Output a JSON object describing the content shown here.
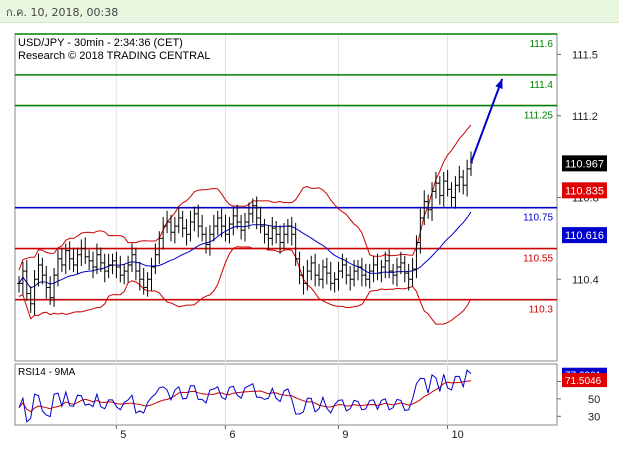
{
  "header": {
    "timestamp": "ก.ค. 10, 2018, 00:38"
  },
  "chart_data": {
    "type": "line",
    "title": "USD/JPY - 30min - 2:34:36 (CET)",
    "subtitle": "Research © 2018 TRADING CENTRAL",
    "x_tick_labels": [
      "5",
      "6",
      "9",
      "10"
    ],
    "x_tick_days": [
      5,
      6,
      9,
      10
    ],
    "y_ticks": [
      110.4,
      110.8,
      111.2,
      111.5
    ],
    "y_tick_labels": [
      "110.4",
      "110.8",
      "111.2",
      "111.5"
    ],
    "y_range": [
      110.0,
      111.6
    ],
    "resistance_levels": [
      {
        "value": 111.6,
        "label": "111.6",
        "color": "#008000"
      },
      {
        "value": 111.4,
        "label": "111.4",
        "color": "#008000"
      },
      {
        "value": 111.25,
        "label": "111.25",
        "color": "#008000"
      }
    ],
    "pivot_level": {
      "value": 110.75,
      "label": "110.75",
      "color": "#0000cc"
    },
    "support_levels": [
      {
        "value": 110.55,
        "label": "110.55",
        "color": "#cc0000"
      },
      {
        "value": 110.3,
        "label": "110.3",
        "color": "#cc0000"
      }
    ],
    "price_tags": [
      {
        "value": 110.967,
        "label": "110.967",
        "color": "#000000"
      },
      {
        "value": 110.835,
        "label": "110.835",
        "color": "#e00000"
      },
      {
        "value": 110.616,
        "label": "110.616",
        "color": "#0000cc"
      }
    ],
    "price_closes": [
      110.38,
      110.44,
      110.33,
      110.28,
      110.4,
      110.47,
      110.42,
      110.36,
      110.31,
      110.42,
      110.5,
      110.47,
      110.54,
      110.5,
      110.47,
      110.52,
      110.55,
      110.51,
      110.49,
      110.46,
      110.52,
      110.48,
      110.44,
      110.47,
      110.49,
      110.46,
      110.42,
      110.44,
      110.47,
      110.52,
      110.44,
      110.4,
      110.36,
      110.4,
      110.46,
      110.52,
      110.6,
      110.66,
      110.68,
      110.63,
      110.66,
      110.7,
      110.65,
      110.62,
      110.68,
      110.72,
      110.66,
      110.62,
      110.57,
      110.62,
      110.66,
      110.7,
      110.66,
      110.62,
      110.67,
      110.71,
      110.68,
      110.64,
      110.68,
      110.72,
      110.76,
      110.7,
      110.66,
      110.62,
      110.6,
      110.65,
      110.62,
      110.58,
      110.62,
      110.66,
      110.62,
      110.5,
      110.42,
      110.38,
      110.44,
      110.48,
      110.42,
      110.4,
      110.46,
      110.43,
      110.38,
      110.4,
      110.44,
      110.47,
      110.42,
      110.4,
      110.44,
      110.46,
      110.42,
      110.4,
      110.44,
      110.47,
      110.43,
      110.46,
      110.49,
      110.44,
      110.42,
      110.46,
      110.48,
      110.43,
      110.4,
      110.45,
      110.58,
      110.7,
      110.78,
      110.74,
      110.83,
      110.87,
      110.81,
      110.88,
      110.84,
      110.8,
      110.86,
      110.9,
      110.86,
      110.94,
      110.97
    ],
    "rsi": {
      "label": "RSI14 - 9MA",
      "y_ticks": [
        30,
        50,
        70
      ],
      "y_range": [
        20,
        90
      ],
      "rsi_value": {
        "value": 77.6961,
        "label": "77.6961",
        "color": "#0000cc"
      },
      "ma_value": {
        "value": 71.5046,
        "label": "71.5046",
        "color": "#e00000"
      }
    },
    "arrow": {
      "from_index": 116,
      "from_value": 110.97,
      "to_index": 124,
      "to_value": 111.38
    },
    "colors": {
      "price": "#000000",
      "ma": "#0000cc",
      "bands": "#cc0000",
      "rsi": "#0000cc",
      "rsi_ma": "#cc0000",
      "grid": "#e2e2e2"
    }
  }
}
